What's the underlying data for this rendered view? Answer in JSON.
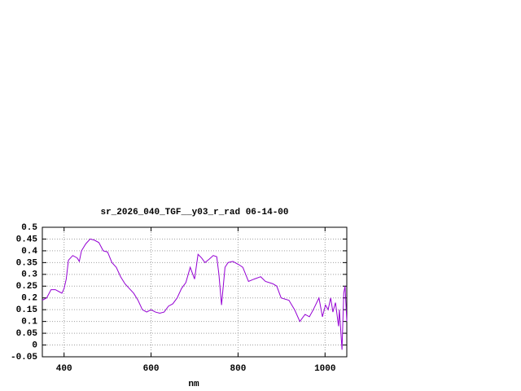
{
  "chart_data": {
    "type": "line",
    "title": "sr_2026_040_TGF__y03_r_rad 06-14-00",
    "x_label": "nm",
    "x": [
      350,
      360,
      370,
      380,
      390,
      395,
      400,
      405,
      410,
      420,
      430,
      435,
      440,
      450,
      460,
      470,
      480,
      490,
      500,
      510,
      520,
      530,
      540,
      550,
      560,
      570,
      580,
      590,
      600,
      610,
      620,
      630,
      640,
      650,
      660,
      670,
      680,
      690,
      700,
      708,
      716,
      724,
      734,
      743,
      751,
      756,
      762,
      770,
      777,
      788,
      803,
      811,
      824,
      837,
      852,
      863,
      880,
      889,
      899,
      917,
      930,
      942,
      954,
      964,
      973,
      986,
      994,
      1001,
      1007,
      1013,
      1018,
      1024,
      1031,
      1033,
      1039,
      1043,
      1046,
      1050
    ],
    "series": [
      {
        "name": "sr_2026_040_TGF__y03_r_rad",
        "color": "#9400d3",
        "values": [
          0.19,
          0.2,
          0.235,
          0.235,
          0.225,
          0.22,
          0.24,
          0.28,
          0.36,
          0.38,
          0.37,
          0.355,
          0.4,
          0.43,
          0.45,
          0.445,
          0.435,
          0.4,
          0.395,
          0.35,
          0.33,
          0.29,
          0.26,
          0.24,
          0.22,
          0.19,
          0.15,
          0.14,
          0.15,
          0.14,
          0.135,
          0.14,
          0.165,
          0.175,
          0.2,
          0.24,
          0.265,
          0.33,
          0.28,
          0.385,
          0.37,
          0.35,
          0.365,
          0.38,
          0.375,
          0.3,
          0.17,
          0.33,
          0.35,
          0.355,
          0.34,
          0.33,
          0.27,
          0.28,
          0.29,
          0.27,
          0.26,
          0.25,
          0.2,
          0.19,
          0.15,
          0.1,
          0.13,
          0.12,
          0.15,
          0.2,
          0.12,
          0.17,
          0.15,
          0.2,
          0.14,
          0.18,
          0.08,
          0.15,
          -0.02,
          0.22,
          0.25,
          0.1
        ]
      }
    ],
    "xlim": [
      350,
      1050
    ],
    "xticks": [
      400,
      600,
      800,
      1000
    ],
    "ylim": [
      -0.05,
      0.5
    ],
    "yticks": [
      -0.05,
      0,
      0.05,
      0.1,
      0.15,
      0.2,
      0.25,
      0.3,
      0.35,
      0.4,
      0.45,
      0.5
    ],
    "grid": true
  }
}
